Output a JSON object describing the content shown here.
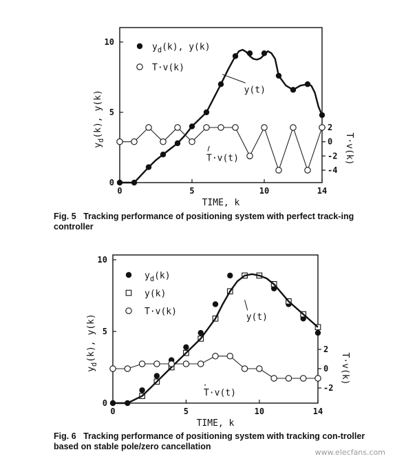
{
  "chart_data": [
    {
      "type": "line",
      "caption_label": "Fig. 5",
      "caption_text": "Tracking performance of positioning system with perfect track-ing controller",
      "xlabel": "TIME, k",
      "ylabel": "y_d(k), y(k)",
      "y2label": "T·v(k)",
      "xlim": [
        0,
        14
      ],
      "ylim": [
        0,
        10
      ],
      "y2lim": [
        -6,
        6
      ],
      "x_ticks": [
        0,
        5,
        10,
        14
      ],
      "y_ticks": [
        0,
        5,
        10
      ],
      "y2_ticks": [
        2,
        0,
        -2,
        -4
      ],
      "legend": [
        {
          "marker": "filled-circle",
          "label": "y_d(k), y(k)"
        },
        {
          "marker": "open-circle",
          "label": "T·v(k)"
        }
      ],
      "annotations": [
        {
          "text": "y(t)",
          "x": 7.1,
          "y": 7.7,
          "tx": 8.6,
          "ty": 6.6
        },
        {
          "text": "T·v(t)",
          "x": 6.2,
          "y": 3.9,
          "tx": 6.0,
          "ty": 2.2
        }
      ],
      "series": [
        {
          "name": "y_d(k), y(k)",
          "marker": "filled-circle",
          "x": [
            0,
            1,
            2,
            3,
            4,
            5,
            6,
            7,
            8,
            9,
            10,
            11,
            12,
            13,
            14
          ],
          "y": [
            0,
            0,
            1.1,
            2.0,
            2.8,
            4.0,
            5.0,
            7.0,
            9.0,
            9.2,
            9.2,
            7.6,
            6.6,
            7.0,
            4.8
          ]
        },
        {
          "name": "y(t)",
          "style": "solid-line",
          "x": [
            0,
            1,
            1.5,
            2,
            2.5,
            3,
            3.5,
            4,
            4.5,
            5,
            5.5,
            6,
            6.5,
            7,
            7.5,
            8,
            8.25,
            8.5,
            8.75,
            9,
            9.25,
            9.5,
            9.75,
            10,
            10.25,
            10.5,
            10.75,
            11,
            11.5,
            12,
            12.5,
            13,
            13.25,
            13.5,
            13.75,
            14
          ],
          "y": [
            0,
            0,
            0.55,
            1.1,
            1.6,
            2.0,
            2.4,
            2.8,
            3.35,
            4.0,
            4.5,
            5.0,
            6.0,
            7.0,
            8.05,
            9.0,
            9.35,
            9.45,
            9.3,
            9.0,
            8.8,
            8.75,
            8.85,
            9.1,
            9.35,
            9.2,
            8.8,
            7.6,
            6.9,
            6.6,
            6.9,
            7.0,
            6.9,
            6.4,
            5.4,
            4.8
          ]
        },
        {
          "name": "T·v(k)",
          "marker": "open-circle",
          "axis": "right",
          "x": [
            0,
            1,
            2,
            3,
            4,
            5,
            6,
            7,
            8,
            9,
            10,
            11,
            12,
            13,
            14
          ],
          "y": [
            0,
            0,
            2,
            0,
            2,
            0,
            2,
            2,
            2,
            -2,
            2,
            -4,
            2,
            -4,
            2
          ]
        }
      ]
    },
    {
      "type": "line",
      "caption_label": "Fig. 6",
      "caption_text": "Tracking performance of positioning system with tracking con-troller based on stable pole/zero cancellation",
      "xlabel": "TIME, k",
      "ylabel": "y_d(k), y(k)",
      "y2label": "T·v(k)",
      "xlim": [
        0,
        14
      ],
      "ylim": [
        0,
        10
      ],
      "y2lim": [
        -6,
        6
      ],
      "x_ticks": [
        0,
        5,
        10,
        14
      ],
      "y_ticks": [
        0,
        5,
        10
      ],
      "y2_ticks": [
        2,
        0,
        -2
      ],
      "legend": [
        {
          "marker": "filled-circle",
          "label": "y_d(k)"
        },
        {
          "marker": "open-square",
          "label": "y(k)"
        },
        {
          "marker": "open-circle",
          "label": "T·v(k)"
        }
      ],
      "annotations": [
        {
          "text": "y(t)",
          "x": 9.0,
          "y": 7.2,
          "tx": 9.1,
          "ty": 6.0
        },
        {
          "text": "T·v(t)",
          "x": 6.3,
          "y": 2.9,
          "tx": 6.2,
          "ty": 2.0
        }
      ],
      "series": [
        {
          "name": "y_d(k)",
          "marker": "filled-circle",
          "x": [
            0,
            1,
            2,
            3,
            4,
            5,
            6,
            7,
            8,
            9,
            10,
            11,
            12,
            13,
            14
          ],
          "y": [
            0,
            0,
            0.9,
            1.9,
            3.0,
            3.9,
            4.9,
            6.9,
            8.9,
            8.9,
            8.9,
            8.0,
            6.9,
            5.9,
            4.9
          ]
        },
        {
          "name": "y(k)",
          "marker": "open-square",
          "x": [
            2,
            3,
            4,
            5,
            6,
            7,
            8,
            9,
            10,
            11,
            12,
            13,
            14
          ],
          "y": [
            0.5,
            1.5,
            2.5,
            3.5,
            4.5,
            5.9,
            7.8,
            8.9,
            8.9,
            8.3,
            7.1,
            6.2,
            5.3
          ]
        },
        {
          "name": "y(t)",
          "style": "solid-line",
          "x": [
            0,
            1,
            2,
            3,
            4,
            5,
            6,
            7,
            7.5,
            8,
            8.5,
            9,
            9.5,
            10,
            10.5,
            11,
            12,
            13,
            14
          ],
          "y": [
            0,
            0,
            0.5,
            1.5,
            2.5,
            3.5,
            4.5,
            5.9,
            6.9,
            7.8,
            8.5,
            8.9,
            9.0,
            8.9,
            8.7,
            8.3,
            7.1,
            6.2,
            5.3
          ]
        },
        {
          "name": "T·v(k)",
          "marker": "open-circle",
          "axis": "right",
          "x": [
            0,
            1,
            2,
            3,
            4,
            5,
            6,
            7,
            8,
            9,
            10,
            11,
            12,
            13,
            14
          ],
          "y": [
            0,
            0,
            0.5,
            0.5,
            0.5,
            0.5,
            0.5,
            1.3,
            1.3,
            0,
            0,
            -1,
            -1,
            -1,
            -1
          ]
        }
      ]
    }
  ],
  "watermark": "www.elecfans.com"
}
